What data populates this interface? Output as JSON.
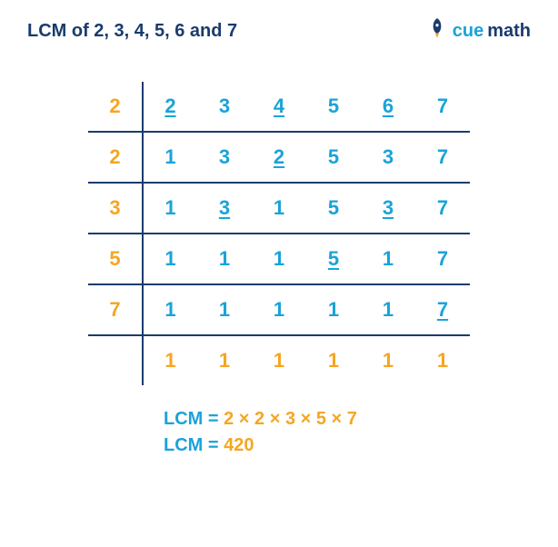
{
  "colors": {
    "title": "#1a3b6e",
    "divisor": "#f5a623",
    "cell": "#1aa3d9",
    "finalrow": "#f5a623",
    "line": "#1a3b6e",
    "result_label": "#1aa3d9",
    "result_value": "#f5a623",
    "logo_cue": "#1aa3d9",
    "logo_math": "#1a3b6e",
    "rocket": "#1a3b6e",
    "rocket_flame": "#f5a623"
  },
  "title": "LCM of 2, 3, 4, 5, 6 and 7",
  "logo": {
    "cue": "cue",
    "math": "math"
  },
  "table": {
    "rows": [
      {
        "divisor": "2",
        "cells": [
          {
            "v": "2",
            "u": true
          },
          {
            "v": "3",
            "u": false
          },
          {
            "v": "4",
            "u": true
          },
          {
            "v": "5",
            "u": false
          },
          {
            "v": "6",
            "u": true
          },
          {
            "v": "7",
            "u": false
          }
        ],
        "border": true,
        "final": false
      },
      {
        "divisor": "2",
        "cells": [
          {
            "v": "1",
            "u": false
          },
          {
            "v": "3",
            "u": false
          },
          {
            "v": "2",
            "u": true
          },
          {
            "v": "5",
            "u": false
          },
          {
            "v": "3",
            "u": false
          },
          {
            "v": "7",
            "u": false
          }
        ],
        "border": true,
        "final": false
      },
      {
        "divisor": "3",
        "cells": [
          {
            "v": "1",
            "u": false
          },
          {
            "v": "3",
            "u": true
          },
          {
            "v": "1",
            "u": false
          },
          {
            "v": "5",
            "u": false
          },
          {
            "v": "3",
            "u": true
          },
          {
            "v": "7",
            "u": false
          }
        ],
        "border": true,
        "final": false
      },
      {
        "divisor": "5",
        "cells": [
          {
            "v": "1",
            "u": false
          },
          {
            "v": "1",
            "u": false
          },
          {
            "v": "1",
            "u": false
          },
          {
            "v": "5",
            "u": true
          },
          {
            "v": "1",
            "u": false
          },
          {
            "v": "7",
            "u": false
          }
        ],
        "border": true,
        "final": false
      },
      {
        "divisor": "7",
        "cells": [
          {
            "v": "1",
            "u": false
          },
          {
            "v": "1",
            "u": false
          },
          {
            "v": "1",
            "u": false
          },
          {
            "v": "1",
            "u": false
          },
          {
            "v": "1",
            "u": false
          },
          {
            "v": "7",
            "u": true
          }
        ],
        "border": true,
        "final": false
      },
      {
        "divisor": "",
        "cells": [
          {
            "v": "1",
            "u": false
          },
          {
            "v": "1",
            "u": false
          },
          {
            "v": "1",
            "u": false
          },
          {
            "v": "1",
            "u": false
          },
          {
            "v": "1",
            "u": false
          },
          {
            "v": "1",
            "u": false
          }
        ],
        "border": false,
        "final": true
      }
    ]
  },
  "result": {
    "line1_label": "LCM = ",
    "line1_value": "2 × 2 × 3 × 5 × 7",
    "line2_label": "LCM = ",
    "line2_value": "420"
  }
}
